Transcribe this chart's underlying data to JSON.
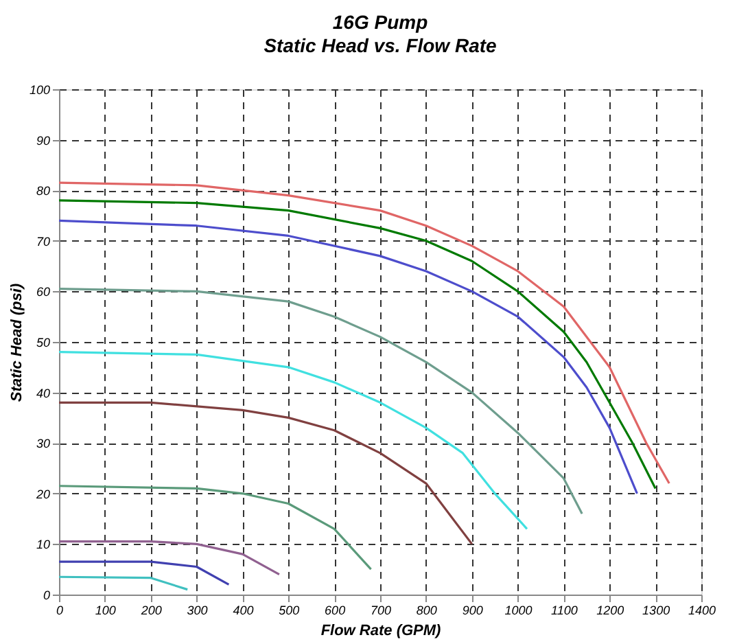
{
  "chart_data": {
    "type": "line",
    "title": "16G Pump",
    "subtitle": "Static Head vs. Flow Rate",
    "xlabel": "Flow Rate (GPM)",
    "ylabel": "Static Head (psi)",
    "xlim": [
      0,
      1400
    ],
    "xticks": [
      0,
      100,
      200,
      300,
      400,
      500,
      600,
      700,
      800,
      900,
      1000,
      1100,
      1200,
      1300,
      1400
    ],
    "ylim": [
      0,
      100
    ],
    "yticks": [
      0,
      10,
      20,
      30,
      40,
      50,
      60,
      70,
      80,
      90,
      100
    ],
    "grid": true,
    "legend": false,
    "marker": "none",
    "line_style": "solid",
    "series": [
      {
        "color": "#e06666",
        "x": [
          0,
          300,
          500,
          700,
          800,
          900,
          1000,
          1100,
          1200,
          1280,
          1330
        ],
        "values": [
          81.5,
          81,
          79,
          76,
          73,
          69,
          64,
          57,
          45,
          30,
          22
        ]
      },
      {
        "color": "#007a00",
        "x": [
          0,
          300,
          500,
          700,
          800,
          900,
          1000,
          1100,
          1150,
          1200,
          1250,
          1300
        ],
        "values": [
          78,
          77.5,
          76,
          72.5,
          70,
          66,
          60,
          52,
          46,
          38,
          30,
          21
        ]
      },
      {
        "color": "#4d4dcc",
        "x": [
          0,
          300,
          500,
          700,
          800,
          900,
          1000,
          1100,
          1150,
          1200,
          1260
        ],
        "values": [
          74,
          73,
          71,
          67,
          64,
          60,
          55,
          47,
          41,
          33,
          20
        ]
      },
      {
        "color": "#6e9e8e",
        "x": [
          0,
          300,
          500,
          600,
          700,
          800,
          900,
          1000,
          1100,
          1140
        ],
        "values": [
          60.5,
          60,
          58,
          55,
          51,
          46,
          40,
          32,
          23,
          16
        ]
      },
      {
        "color": "#40e0e0",
        "x": [
          0,
          300,
          500,
          600,
          700,
          800,
          880,
          950,
          1020
        ],
        "values": [
          48,
          47.5,
          45,
          42,
          38,
          33,
          28,
          20,
          13
        ]
      },
      {
        "color": "#804040",
        "x": [
          0,
          200,
          400,
          500,
          600,
          700,
          800,
          900
        ],
        "values": [
          38,
          38,
          36.5,
          35,
          32.5,
          28,
          22,
          10
        ]
      },
      {
        "color": "#5a9a7a",
        "x": [
          0,
          300,
          400,
          500,
          600,
          680
        ],
        "values": [
          21.5,
          21,
          20,
          18,
          13,
          5
        ]
      },
      {
        "color": "#906090",
        "x": [
          0,
          200,
          300,
          400,
          480
        ],
        "values": [
          10.5,
          10.5,
          10,
          8,
          4
        ]
      },
      {
        "color": "#4040b0",
        "x": [
          0,
          200,
          300,
          370
        ],
        "values": [
          6.5,
          6.5,
          5.5,
          2
        ]
      },
      {
        "color": "#40c0c0",
        "x": [
          0,
          200,
          280
        ],
        "values": [
          3.5,
          3.3,
          1
        ]
      }
    ]
  }
}
